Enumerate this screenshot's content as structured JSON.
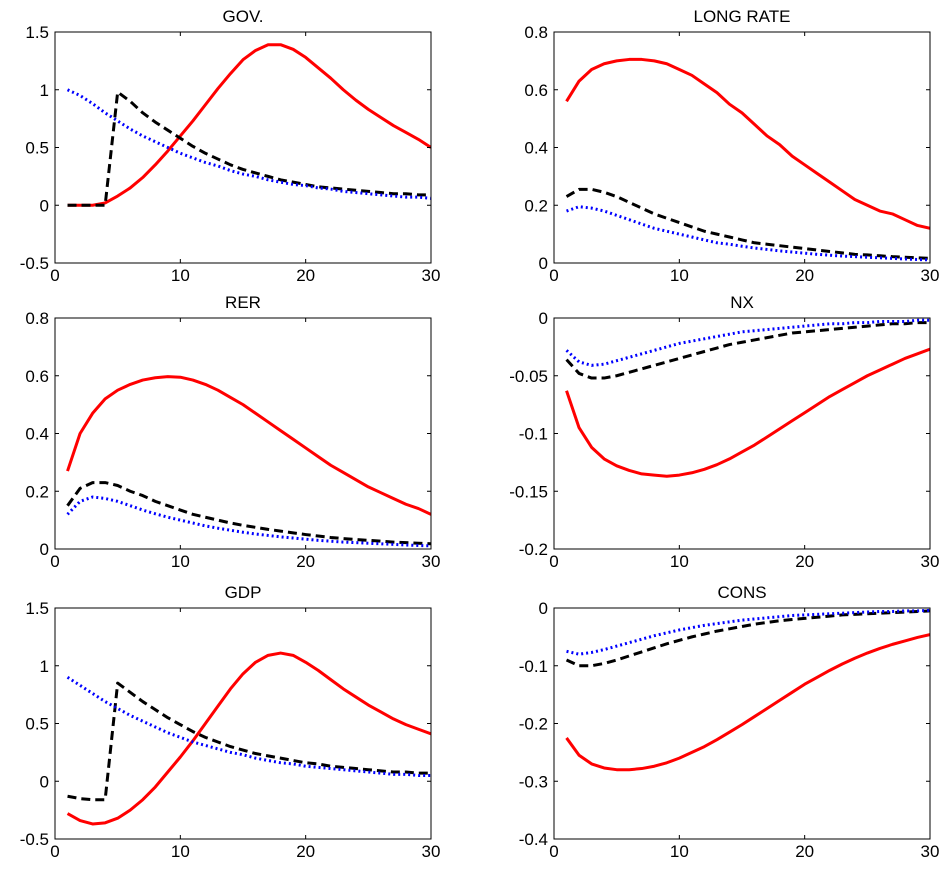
{
  "chart_data": [
    {
      "type": "line",
      "title": "GOV.",
      "xlabel": "",
      "ylabel": "",
      "xlim": [
        0,
        30
      ],
      "ylim": [
        -0.5,
        1.5
      ],
      "xticks": [
        "0",
        "10",
        "20",
        "30"
      ],
      "yticks": [
        "-0.5",
        "0",
        "0.5",
        "1",
        "1.5"
      ],
      "x": [
        1,
        2,
        3,
        4,
        5,
        6,
        7,
        8,
        9,
        10,
        11,
        12,
        13,
        14,
        15,
        16,
        17,
        18,
        19,
        20,
        21,
        22,
        23,
        24,
        25,
        26,
        27,
        28,
        29,
        30
      ],
      "series": [
        {
          "style": "solid",
          "color": "#ff0000",
          "values": [
            0,
            0,
            0,
            0.02,
            0.08,
            0.15,
            0.24,
            0.35,
            0.47,
            0.6,
            0.73,
            0.87,
            1.01,
            1.14,
            1.26,
            1.34,
            1.39,
            1.39,
            1.35,
            1.28,
            1.19,
            1.1,
            1.0,
            0.91,
            0.83,
            0.76,
            0.69,
            0.63,
            0.57,
            0.5
          ]
        },
        {
          "style": "dashed",
          "color": "#000000",
          "values": [
            0,
            0,
            0,
            0,
            0.98,
            0.9,
            0.8,
            0.72,
            0.65,
            0.58,
            0.51,
            0.45,
            0.4,
            0.35,
            0.31,
            0.28,
            0.25,
            0.22,
            0.2,
            0.18,
            0.16,
            0.15,
            0.14,
            0.13,
            0.12,
            0.11,
            0.1,
            0.1,
            0.09,
            0.09
          ]
        },
        {
          "style": "dotted",
          "color": "#0000ff",
          "values": [
            1.0,
            0.95,
            0.88,
            0.8,
            0.73,
            0.66,
            0.6,
            0.55,
            0.5,
            0.45,
            0.41,
            0.37,
            0.34,
            0.3,
            0.27,
            0.25,
            0.22,
            0.2,
            0.18,
            0.17,
            0.15,
            0.14,
            0.12,
            0.11,
            0.1,
            0.09,
            0.08,
            0.07,
            0.07,
            0.06
          ]
        }
      ]
    },
    {
      "type": "line",
      "title": "LONG RATE",
      "xlabel": "",
      "ylabel": "",
      "xlim": [
        0,
        30
      ],
      "ylim": [
        0,
        0.8
      ],
      "xticks": [
        "0",
        "10",
        "20",
        "30"
      ],
      "yticks": [
        "0",
        "0.2",
        "0.4",
        "0.6",
        "0.8"
      ],
      "x": [
        1,
        2,
        3,
        4,
        5,
        6,
        7,
        8,
        9,
        10,
        11,
        12,
        13,
        14,
        15,
        16,
        17,
        18,
        19,
        20,
        21,
        22,
        23,
        24,
        25,
        26,
        27,
        28,
        29,
        30
      ],
      "series": [
        {
          "style": "solid",
          "color": "#ff0000",
          "values": [
            0.56,
            0.63,
            0.67,
            0.69,
            0.7,
            0.705,
            0.705,
            0.7,
            0.69,
            0.67,
            0.65,
            0.62,
            0.59,
            0.55,
            0.52,
            0.48,
            0.44,
            0.41,
            0.37,
            0.34,
            0.31,
            0.28,
            0.25,
            0.22,
            0.2,
            0.18,
            0.17,
            0.15,
            0.13,
            0.12
          ]
        },
        {
          "style": "dashed",
          "color": "#000000",
          "values": [
            0.23,
            0.255,
            0.255,
            0.245,
            0.23,
            0.21,
            0.19,
            0.17,
            0.155,
            0.14,
            0.125,
            0.11,
            0.1,
            0.09,
            0.08,
            0.07,
            0.065,
            0.06,
            0.055,
            0.05,
            0.045,
            0.04,
            0.035,
            0.03,
            0.028,
            0.025,
            0.022,
            0.02,
            0.018,
            0.016
          ]
        },
        {
          "style": "dotted",
          "color": "#0000ff",
          "values": [
            0.18,
            0.195,
            0.19,
            0.18,
            0.165,
            0.15,
            0.135,
            0.12,
            0.11,
            0.1,
            0.09,
            0.08,
            0.07,
            0.065,
            0.058,
            0.052,
            0.047,
            0.042,
            0.038,
            0.034,
            0.03,
            0.027,
            0.024,
            0.022,
            0.02,
            0.018,
            0.016,
            0.014,
            0.012,
            0.011
          ]
        }
      ]
    },
    {
      "type": "line",
      "title": "RER",
      "xlabel": "",
      "ylabel": "",
      "xlim": [
        0,
        30
      ],
      "ylim": [
        0,
        0.8
      ],
      "xticks": [
        "0",
        "10",
        "20",
        "30"
      ],
      "yticks": [
        "0",
        "0.2",
        "0.4",
        "0.6",
        "0.8"
      ],
      "x": [
        1,
        2,
        3,
        4,
        5,
        6,
        7,
        8,
        9,
        10,
        11,
        12,
        13,
        14,
        15,
        16,
        17,
        18,
        19,
        20,
        21,
        22,
        23,
        24,
        25,
        26,
        27,
        28,
        29,
        30
      ],
      "series": [
        {
          "style": "solid",
          "color": "#ff0000",
          "values": [
            0.27,
            0.4,
            0.47,
            0.52,
            0.55,
            0.57,
            0.585,
            0.593,
            0.597,
            0.595,
            0.585,
            0.57,
            0.55,
            0.525,
            0.5,
            0.47,
            0.44,
            0.41,
            0.38,
            0.35,
            0.32,
            0.29,
            0.265,
            0.24,
            0.215,
            0.195,
            0.175,
            0.155,
            0.14,
            0.12
          ]
        },
        {
          "style": "dashed",
          "color": "#000000",
          "values": [
            0.15,
            0.21,
            0.23,
            0.23,
            0.22,
            0.2,
            0.185,
            0.165,
            0.15,
            0.135,
            0.12,
            0.11,
            0.1,
            0.09,
            0.082,
            0.075,
            0.068,
            0.062,
            0.056,
            0.05,
            0.045,
            0.04,
            0.036,
            0.033,
            0.03,
            0.027,
            0.024,
            0.022,
            0.02,
            0.018
          ]
        },
        {
          "style": "dotted",
          "color": "#0000ff",
          "values": [
            0.12,
            0.165,
            0.18,
            0.175,
            0.165,
            0.15,
            0.135,
            0.122,
            0.11,
            0.1,
            0.09,
            0.08,
            0.072,
            0.065,
            0.058,
            0.052,
            0.047,
            0.042,
            0.038,
            0.034,
            0.03,
            0.027,
            0.024,
            0.022,
            0.02,
            0.018,
            0.016,
            0.014,
            0.012,
            0.011
          ]
        }
      ]
    },
    {
      "type": "line",
      "title": "NX",
      "xlabel": "",
      "ylabel": "",
      "xlim": [
        0,
        30
      ],
      "ylim": [
        -0.2,
        0
      ],
      "xticks": [
        "0",
        "10",
        "20",
        "30"
      ],
      "yticks": [
        "-0.2",
        "-0.15",
        "-0.1",
        "-0.05",
        "0"
      ],
      "x": [
        1,
        2,
        3,
        4,
        5,
        6,
        7,
        8,
        9,
        10,
        11,
        12,
        13,
        14,
        15,
        16,
        17,
        18,
        19,
        20,
        21,
        22,
        23,
        24,
        25,
        26,
        27,
        28,
        29,
        30
      ],
      "series": [
        {
          "style": "solid",
          "color": "#ff0000",
          "values": [
            -0.063,
            -0.095,
            -0.112,
            -0.122,
            -0.128,
            -0.132,
            -0.135,
            -0.136,
            -0.137,
            -0.136,
            -0.134,
            -0.131,
            -0.127,
            -0.122,
            -0.116,
            -0.11,
            -0.103,
            -0.096,
            -0.089,
            -0.082,
            -0.075,
            -0.068,
            -0.062,
            -0.056,
            -0.05,
            -0.045,
            -0.04,
            -0.035,
            -0.031,
            -0.027
          ]
        },
        {
          "style": "dashed",
          "color": "#000000",
          "values": [
            -0.036,
            -0.048,
            -0.052,
            -0.052,
            -0.05,
            -0.047,
            -0.044,
            -0.041,
            -0.038,
            -0.035,
            -0.032,
            -0.029,
            -0.026,
            -0.023,
            -0.021,
            -0.019,
            -0.017,
            -0.015,
            -0.013,
            -0.012,
            -0.011,
            -0.01,
            -0.009,
            -0.008,
            -0.007,
            -0.006,
            -0.005,
            -0.005,
            -0.004,
            -0.004
          ]
        },
        {
          "style": "dotted",
          "color": "#0000ff",
          "values": [
            -0.028,
            -0.038,
            -0.041,
            -0.04,
            -0.037,
            -0.034,
            -0.031,
            -0.028,
            -0.025,
            -0.022,
            -0.02,
            -0.018,
            -0.016,
            -0.014,
            -0.012,
            -0.011,
            -0.01,
            -0.009,
            -0.008,
            -0.007,
            -0.006,
            -0.005,
            -0.005,
            -0.004,
            -0.004,
            -0.003,
            -0.003,
            -0.003,
            -0.002,
            -0.002
          ]
        }
      ]
    },
    {
      "type": "line",
      "title": "GDP",
      "xlabel": "",
      "ylabel": "",
      "xlim": [
        0,
        30
      ],
      "ylim": [
        -0.5,
        1.5
      ],
      "xticks": [
        "0",
        "10",
        "20",
        "30"
      ],
      "yticks": [
        "-0.5",
        "0",
        "0.5",
        "1",
        "1.5"
      ],
      "x": [
        1,
        2,
        3,
        4,
        5,
        6,
        7,
        8,
        9,
        10,
        11,
        12,
        13,
        14,
        15,
        16,
        17,
        18,
        19,
        20,
        21,
        22,
        23,
        24,
        25,
        26,
        27,
        28,
        29,
        30
      ],
      "series": [
        {
          "style": "solid",
          "color": "#ff0000",
          "values": [
            -0.28,
            -0.34,
            -0.37,
            -0.36,
            -0.32,
            -0.25,
            -0.16,
            -0.05,
            0.08,
            0.21,
            0.35,
            0.5,
            0.65,
            0.8,
            0.93,
            1.03,
            1.09,
            1.11,
            1.09,
            1.03,
            0.96,
            0.88,
            0.8,
            0.73,
            0.66,
            0.6,
            0.54,
            0.49,
            0.45,
            0.41
          ]
        },
        {
          "style": "dashed",
          "color": "#000000",
          "values": [
            -0.13,
            -0.15,
            -0.16,
            -0.16,
            0.85,
            0.77,
            0.69,
            0.62,
            0.55,
            0.49,
            0.43,
            0.38,
            0.34,
            0.3,
            0.27,
            0.24,
            0.22,
            0.2,
            0.18,
            0.16,
            0.15,
            0.13,
            0.12,
            0.11,
            0.1,
            0.09,
            0.08,
            0.08,
            0.07,
            0.07
          ]
        },
        {
          "style": "dotted",
          "color": "#0000ff",
          "values": [
            0.9,
            0.83,
            0.76,
            0.69,
            0.63,
            0.57,
            0.52,
            0.47,
            0.42,
            0.38,
            0.34,
            0.31,
            0.28,
            0.25,
            0.23,
            0.2,
            0.18,
            0.16,
            0.15,
            0.13,
            0.12,
            0.11,
            0.1,
            0.09,
            0.08,
            0.07,
            0.06,
            0.06,
            0.05,
            0.05
          ]
        }
      ]
    },
    {
      "type": "line",
      "title": "CONS",
      "xlabel": "",
      "ylabel": "",
      "xlim": [
        0,
        30
      ],
      "ylim": [
        -0.4,
        0
      ],
      "xticks": [
        "0",
        "10",
        "20",
        "30"
      ],
      "yticks": [
        "-0.4",
        "-0.3",
        "-0.2",
        "-0.1",
        "0"
      ],
      "x": [
        1,
        2,
        3,
        4,
        5,
        6,
        7,
        8,
        9,
        10,
        11,
        12,
        13,
        14,
        15,
        16,
        17,
        18,
        19,
        20,
        21,
        22,
        23,
        24,
        25,
        26,
        27,
        28,
        29,
        30
      ],
      "series": [
        {
          "style": "solid",
          "color": "#ff0000",
          "values": [
            -0.225,
            -0.255,
            -0.27,
            -0.277,
            -0.28,
            -0.28,
            -0.278,
            -0.274,
            -0.268,
            -0.26,
            -0.25,
            -0.24,
            -0.228,
            -0.215,
            -0.202,
            -0.188,
            -0.174,
            -0.16,
            -0.146,
            -0.132,
            -0.12,
            -0.108,
            -0.097,
            -0.087,
            -0.078,
            -0.07,
            -0.063,
            -0.057,
            -0.051,
            -0.046
          ]
        },
        {
          "style": "dashed",
          "color": "#000000",
          "values": [
            -0.09,
            -0.1,
            -0.1,
            -0.096,
            -0.09,
            -0.083,
            -0.076,
            -0.069,
            -0.062,
            -0.056,
            -0.05,
            -0.045,
            -0.04,
            -0.036,
            -0.032,
            -0.028,
            -0.025,
            -0.022,
            -0.02,
            -0.018,
            -0.016,
            -0.014,
            -0.012,
            -0.011,
            -0.01,
            -0.009,
            -0.008,
            -0.007,
            -0.006,
            -0.005
          ]
        },
        {
          "style": "dotted",
          "color": "#0000ff",
          "values": [
            -0.075,
            -0.08,
            -0.077,
            -0.072,
            -0.066,
            -0.06,
            -0.054,
            -0.048,
            -0.043,
            -0.038,
            -0.034,
            -0.03,
            -0.027,
            -0.024,
            -0.021,
            -0.019,
            -0.017,
            -0.015,
            -0.013,
            -0.012,
            -0.011,
            -0.01,
            -0.009,
            -0.008,
            -0.007,
            -0.006,
            -0.006,
            -0.005,
            -0.005,
            -0.004
          ]
        }
      ]
    }
  ]
}
